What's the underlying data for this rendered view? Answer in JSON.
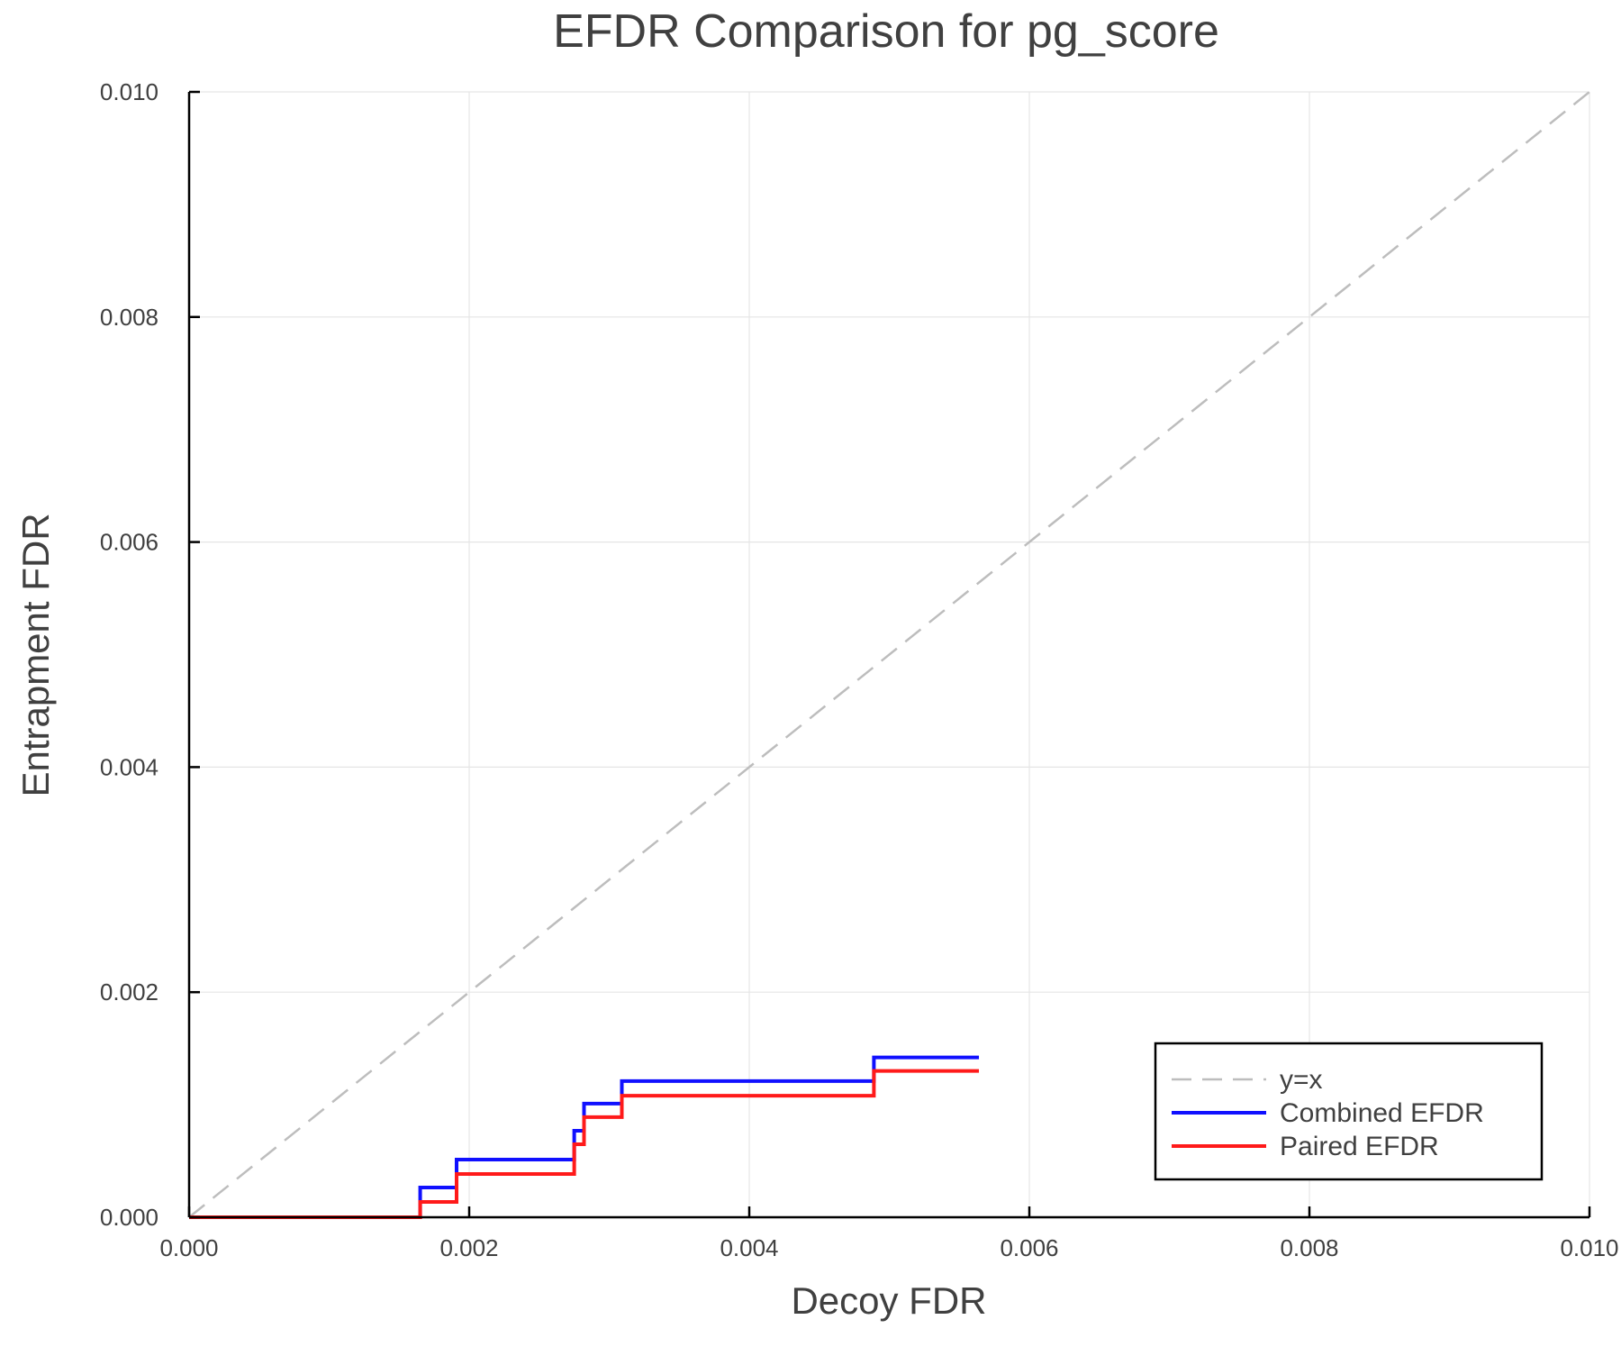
{
  "chart_data": {
    "type": "line",
    "title": "EFDR Comparison for pg_score",
    "xlabel": "Decoy FDR",
    "ylabel": "Entrapment FDR",
    "xlim": [
      0,
      0.01
    ],
    "ylim": [
      0,
      0.01
    ],
    "xticks": [
      "0.000",
      "0.002",
      "0.004",
      "0.006",
      "0.008",
      "0.010"
    ],
    "yticks": [
      "0.000",
      "0.002",
      "0.004",
      "0.006",
      "0.008",
      "0.010"
    ],
    "grid": true,
    "legend_position": "bottom-right",
    "series": [
      {
        "name": "y=x",
        "color": "#bdbdbd",
        "style": "dashed",
        "step": false,
        "x": [
          0,
          0.01
        ],
        "y": [
          0,
          0.01
        ]
      },
      {
        "name": "Combined EFDR",
        "color": "#1010ff",
        "style": "solid",
        "step": true,
        "x": [
          0,
          0.00165,
          0.00191,
          0.00275,
          0.00282,
          0.00309,
          0.00489,
          0.00564
        ],
        "y": [
          0,
          0.000264,
          0.000512,
          0.000769,
          0.00101,
          0.00121,
          0.00142,
          0.00142
        ]
      },
      {
        "name": "Paired EFDR",
        "color": "#ff1a1a",
        "style": "solid",
        "step": true,
        "x": [
          0,
          0.00165,
          0.00191,
          0.00275,
          0.00282,
          0.00309,
          0.00489,
          0.00564
        ],
        "y": [
          0,
          0.000136,
          0.000384,
          0.000649,
          0.00089,
          0.00108,
          0.0013,
          0.0013
        ]
      }
    ]
  }
}
